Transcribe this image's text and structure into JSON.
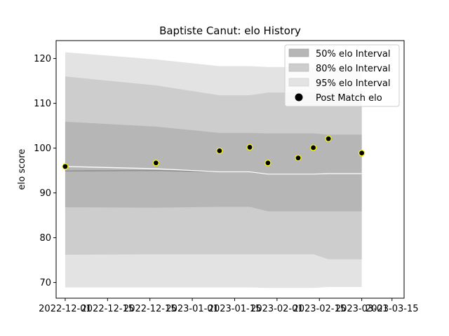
{
  "chart_data": {
    "type": "area",
    "title": "Baptiste Canut: elo History",
    "xlabel": "",
    "ylabel": "elo score",
    "ylim": [
      66.5,
      124.0
    ],
    "xlim": [
      "2022-11-24",
      "2023-03-19"
    ],
    "x_tick_labels": [
      "2022-12-01",
      "2022-12-15",
      "2022-12-15",
      "2023-01-01",
      "2023-01-15",
      "2023-02-01",
      "2023-02-15",
      "2023-03-01",
      "2023-03-15"
    ],
    "x_tick_dates": [
      "2022-11-27",
      "2022-12-11",
      "2022-12-25",
      "2023-01-08",
      "2023-01-22",
      "2023-02-05",
      "2023-02-19",
      "2023-03-05",
      "2023-03-15"
    ],
    "y_ticks": [
      70,
      80,
      90,
      100,
      110,
      120
    ],
    "dates": [
      "2022-11-27",
      "2022-12-27",
      "2023-01-17",
      "2023-01-27",
      "2023-02-02",
      "2023-02-12",
      "2023-02-17",
      "2023-02-22",
      "2023-03-05"
    ],
    "bands": [
      {
        "name": "95% elo Interval",
        "color": "#e3e3e3",
        "upper": [
          121.4,
          119.8,
          118.3,
          118.3,
          118.1,
          118.1,
          118.0,
          118.0,
          118.0
        ],
        "lower": [
          68.9,
          68.9,
          68.9,
          68.9,
          68.8,
          68.8,
          68.8,
          69.0,
          69.0
        ]
      },
      {
        "name": "80% elo Interval",
        "color": "#cdcdcd",
        "upper": [
          116.0,
          114.0,
          111.8,
          111.8,
          112.4,
          112.4,
          112.4,
          112.4,
          112.4
        ],
        "lower": [
          76.2,
          76.3,
          76.3,
          76.3,
          76.3,
          76.3,
          76.3,
          75.2,
          75.2
        ]
      },
      {
        "name": "50% elo Interval",
        "color": "#b6b6b6",
        "upper": [
          105.9,
          104.8,
          103.4,
          103.4,
          103.3,
          103.3,
          103.3,
          103.0,
          103.0
        ],
        "lower": [
          86.8,
          86.7,
          86.9,
          86.9,
          85.9,
          85.9,
          85.9,
          85.9,
          85.9
        ]
      }
    ],
    "mean_line": {
      "color": "#888888",
      "values": [
        94.9,
        95.0,
        94.7,
        94.7,
        94.2,
        94.2,
        94.2,
        94.3,
        94.3
      ]
    },
    "white_line": {
      "color": "#ffffff",
      "values": [
        95.9,
        95.4,
        94.7,
        94.7,
        94.2,
        94.2,
        94.2,
        94.3,
        94.3
      ]
    },
    "series": [
      {
        "name": "Post Match elo",
        "color": "#000000",
        "edge_color": "#ffff00",
        "x": [
          "2022-11-27",
          "2022-12-27",
          "2023-01-17",
          "2023-01-27",
          "2023-02-02",
          "2023-02-12",
          "2023-02-17",
          "2023-02-22",
          "2023-03-05"
        ],
        "y": [
          95.9,
          96.7,
          99.4,
          100.2,
          96.7,
          97.8,
          100.1,
          102.1,
          98.9
        ]
      }
    ],
    "legend": {
      "position": "top-right",
      "entries": [
        {
          "label": "50% elo Interval",
          "kind": "band",
          "color": "#b6b6b6"
        },
        {
          "label": "80% elo Interval",
          "kind": "band",
          "color": "#cdcdcd"
        },
        {
          "label": "95% elo Interval",
          "kind": "band",
          "color": "#e3e3e3"
        },
        {
          "label": "Post Match elo",
          "kind": "marker",
          "color": "#000000"
        }
      ]
    },
    "grid": false
  }
}
